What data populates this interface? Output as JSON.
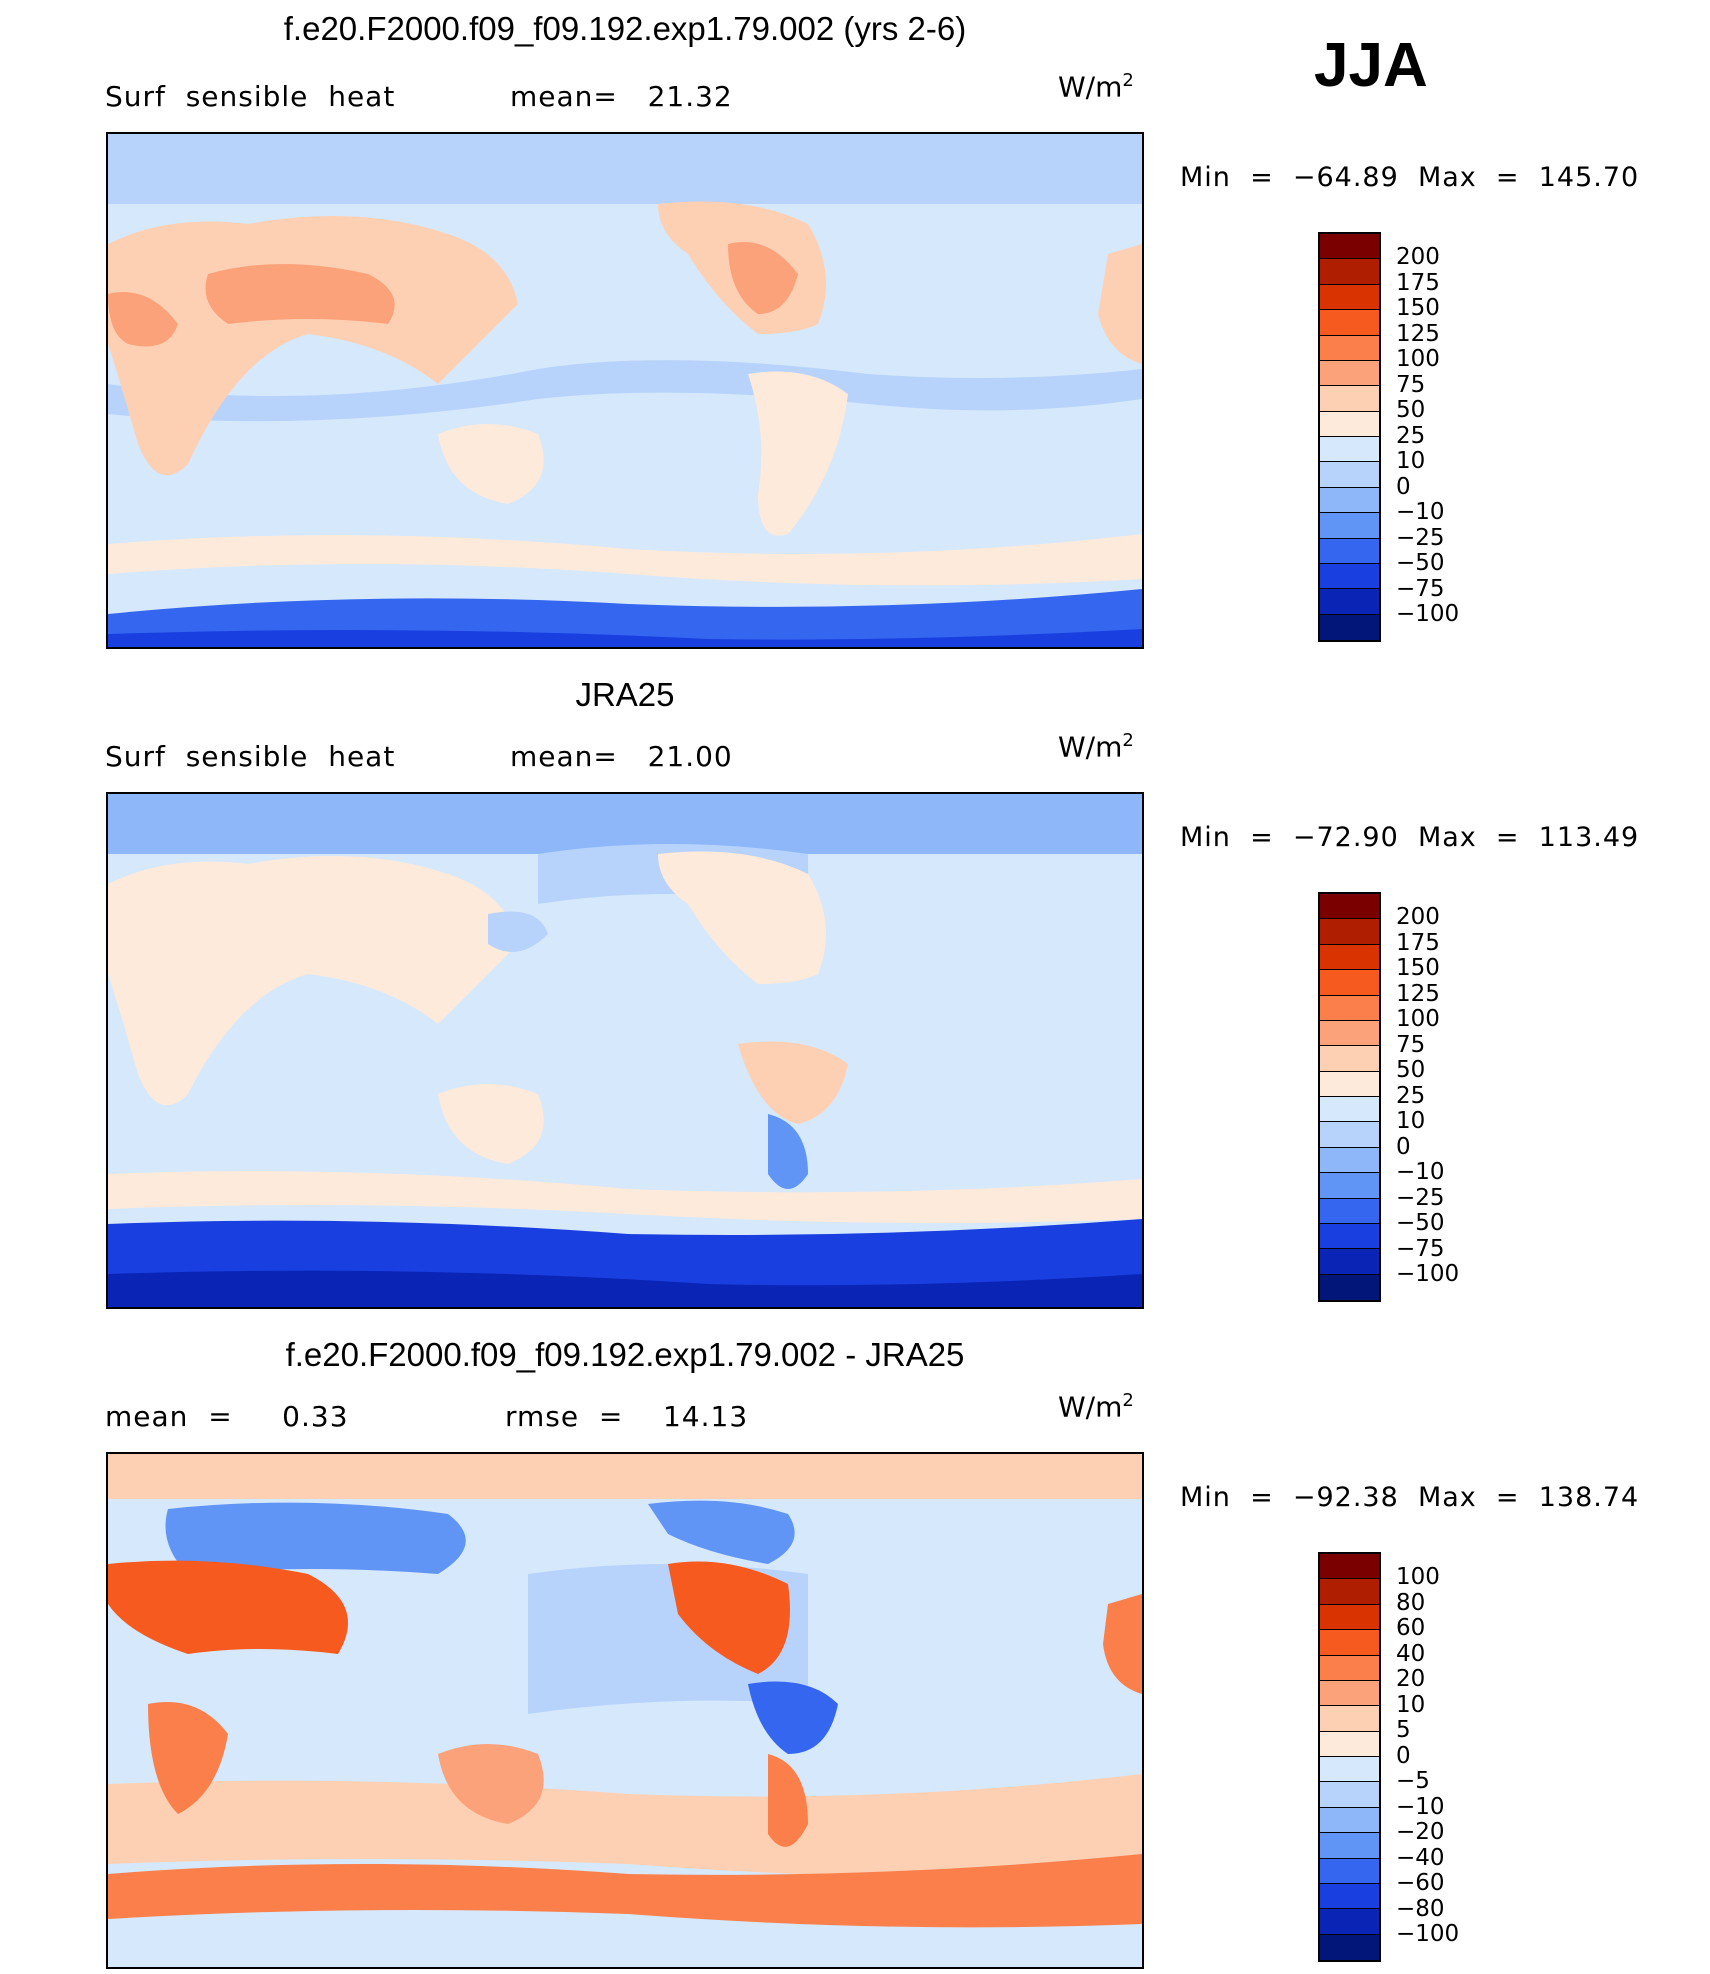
{
  "season": "JJA",
  "panels": [
    {
      "title": "f.e20.F2000.f09_f09.192.exp1.79.002 (yrs 2-6)",
      "info_left": "Surf  sensible  heat",
      "info_right": "mean=   21.32",
      "units": "W/m",
      "units_exp": "2",
      "minmax": "Min  =  −64.89  Max  =  145.70",
      "colorbar": {
        "colors": [
          "#7a0000",
          "#b01e00",
          "#d83300",
          "#f65a1e",
          "#fb7f4a",
          "#fca27b",
          "#fdd0b4",
          "#feeadb",
          "#d6e8fb",
          "#b8d3fb",
          "#8eb7fa",
          "#6094f5",
          "#3566f0",
          "#1a3fe0",
          "#0a24b5",
          "#021578"
        ],
        "labels": [
          "200",
          "175",
          "150",
          "125",
          "100",
          "75",
          "50",
          "25",
          "10",
          "0",
          "−10",
          "−25",
          "−50",
          "−75",
          "−100"
        ]
      }
    },
    {
      "title": "JRA25",
      "info_left": "Surf  sensible  heat",
      "info_right": "mean=   21.00",
      "units": "W/m",
      "units_exp": "2",
      "minmax": "Min  =  −72.90  Max  =  113.49",
      "colorbar": {
        "colors": [
          "#7a0000",
          "#b01e00",
          "#d83300",
          "#f65a1e",
          "#fb7f4a",
          "#fca27b",
          "#fdd0b4",
          "#feeadb",
          "#d6e8fb",
          "#b8d3fb",
          "#8eb7fa",
          "#6094f5",
          "#3566f0",
          "#1a3fe0",
          "#0a24b5",
          "#021578"
        ],
        "labels": [
          "200",
          "175",
          "150",
          "125",
          "100",
          "75",
          "50",
          "25",
          "10",
          "0",
          "−10",
          "−25",
          "−50",
          "−75",
          "−100"
        ]
      }
    },
    {
      "title": "f.e20.F2000.f09_f09.192.exp1.79.002 - JRA25",
      "info_left": "mean  =     0.33",
      "info_right": "rmse  =    14.13",
      "units": "W/m",
      "units_exp": "2",
      "minmax": "Min  =  −92.38  Max  =  138.74",
      "colorbar": {
        "colors": [
          "#7a0000",
          "#b01e00",
          "#d83300",
          "#f65a1e",
          "#fb7f4a",
          "#fca27b",
          "#fdd0b4",
          "#feeadb",
          "#d6e8fb",
          "#b8d3fb",
          "#8eb7fa",
          "#6094f5",
          "#3566f0",
          "#1a3fe0",
          "#0a24b5",
          "#021578"
        ],
        "labels": [
          "100",
          "80",
          "60",
          "40",
          "20",
          "10",
          "5",
          "0",
          "−5",
          "−10",
          "−20",
          "−40",
          "−60",
          "−80",
          "−100"
        ]
      }
    }
  ]
}
